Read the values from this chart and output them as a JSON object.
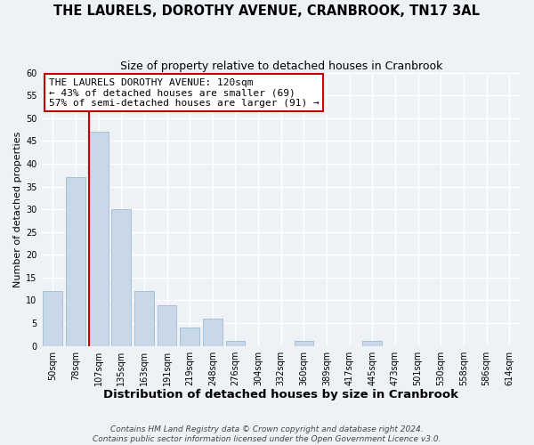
{
  "title": "THE LAURELS, DOROTHY AVENUE, CRANBROOK, TN17 3AL",
  "subtitle": "Size of property relative to detached houses in Cranbrook",
  "xlabel": "Distribution of detached houses by size in Cranbrook",
  "ylabel": "Number of detached properties",
  "bar_labels": [
    "50sqm",
    "78sqm",
    "107sqm",
    "135sqm",
    "163sqm",
    "191sqm",
    "219sqm",
    "248sqm",
    "276sqm",
    "304sqm",
    "332sqm",
    "360sqm",
    "389sqm",
    "417sqm",
    "445sqm",
    "473sqm",
    "501sqm",
    "530sqm",
    "558sqm",
    "586sqm",
    "614sqm"
  ],
  "bar_values": [
    12,
    37,
    47,
    30,
    12,
    9,
    4,
    6,
    1,
    0,
    0,
    1,
    0,
    0,
    1,
    0,
    0,
    0,
    0,
    0,
    0
  ],
  "bar_color": "#c8d8e8",
  "bar_edge_color": "#a8c0d4",
  "highlight_bar_index": 2,
  "highlight_color": "#cc0000",
  "ylim": [
    0,
    60
  ],
  "yticks": [
    0,
    5,
    10,
    15,
    20,
    25,
    30,
    35,
    40,
    45,
    50,
    55,
    60
  ],
  "annotation_title": "THE LAURELS DOROTHY AVENUE: 120sqm",
  "annotation_line1": "← 43% of detached houses are smaller (69)",
  "annotation_line2": "57% of semi-detached houses are larger (91) →",
  "footer_line1": "Contains HM Land Registry data © Crown copyright and database right 2024.",
  "footer_line2": "Contains public sector information licensed under the Open Government Licence v3.0.",
  "background_color": "#eef2f7",
  "grid_color": "#ffffff",
  "title_fontsize": 10.5,
  "subtitle_fontsize": 9,
  "xlabel_fontsize": 9.5,
  "ylabel_fontsize": 8,
  "tick_fontsize": 7,
  "ann_fontsize": 8,
  "footer_fontsize": 6.5
}
